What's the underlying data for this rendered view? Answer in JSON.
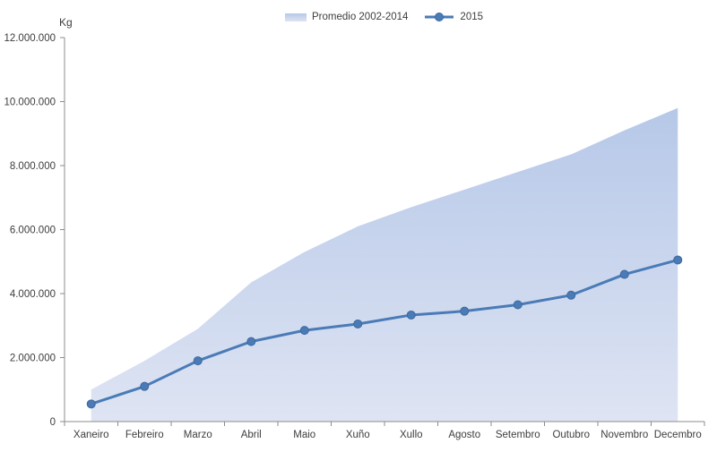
{
  "chart_data": {
    "type": "area+line",
    "title": "",
    "ylabel": "Kg",
    "xlabel": "",
    "ylim": [
      0,
      12000000
    ],
    "ytick_step": 2000000,
    "ytick_labels": [
      "0",
      "2.000.000",
      "4.000.000",
      "6.000.000",
      "8.000.000",
      "10.000.000",
      "12.000.000"
    ],
    "grid": false,
    "legend_position": "top-center",
    "categories": [
      "Xaneiro",
      "Febreiro",
      "Marzo",
      "Abril",
      "Maio",
      "Xuño",
      "Xullo",
      "Agosto",
      "Setembro",
      "Outubro",
      "Novembro",
      "Decembro"
    ],
    "series": [
      {
        "name": "Promedio 2002-2014",
        "type": "area",
        "values": [
          1000000,
          1900000,
          2900000,
          4350000,
          5300000,
          6100000,
          6700000,
          7250000,
          7800000,
          8350000,
          9100000,
          9800000
        ]
      },
      {
        "name": "2015",
        "type": "line",
        "values": [
          550000,
          1100000,
          1900000,
          2500000,
          2850000,
          3050000,
          3330000,
          3450000,
          3650000,
          3950000,
          4600000,
          5050000
        ]
      }
    ],
    "colors": {
      "area_gradient_top": "#b6c8e8",
      "area_gradient_bottom": "#dee4f3",
      "line": "#4a7bb7",
      "marker": "#4a7bb7",
      "marker_edge": "#3d689c",
      "axis": "#8c8c8c",
      "text": "#3d3d3d"
    }
  }
}
